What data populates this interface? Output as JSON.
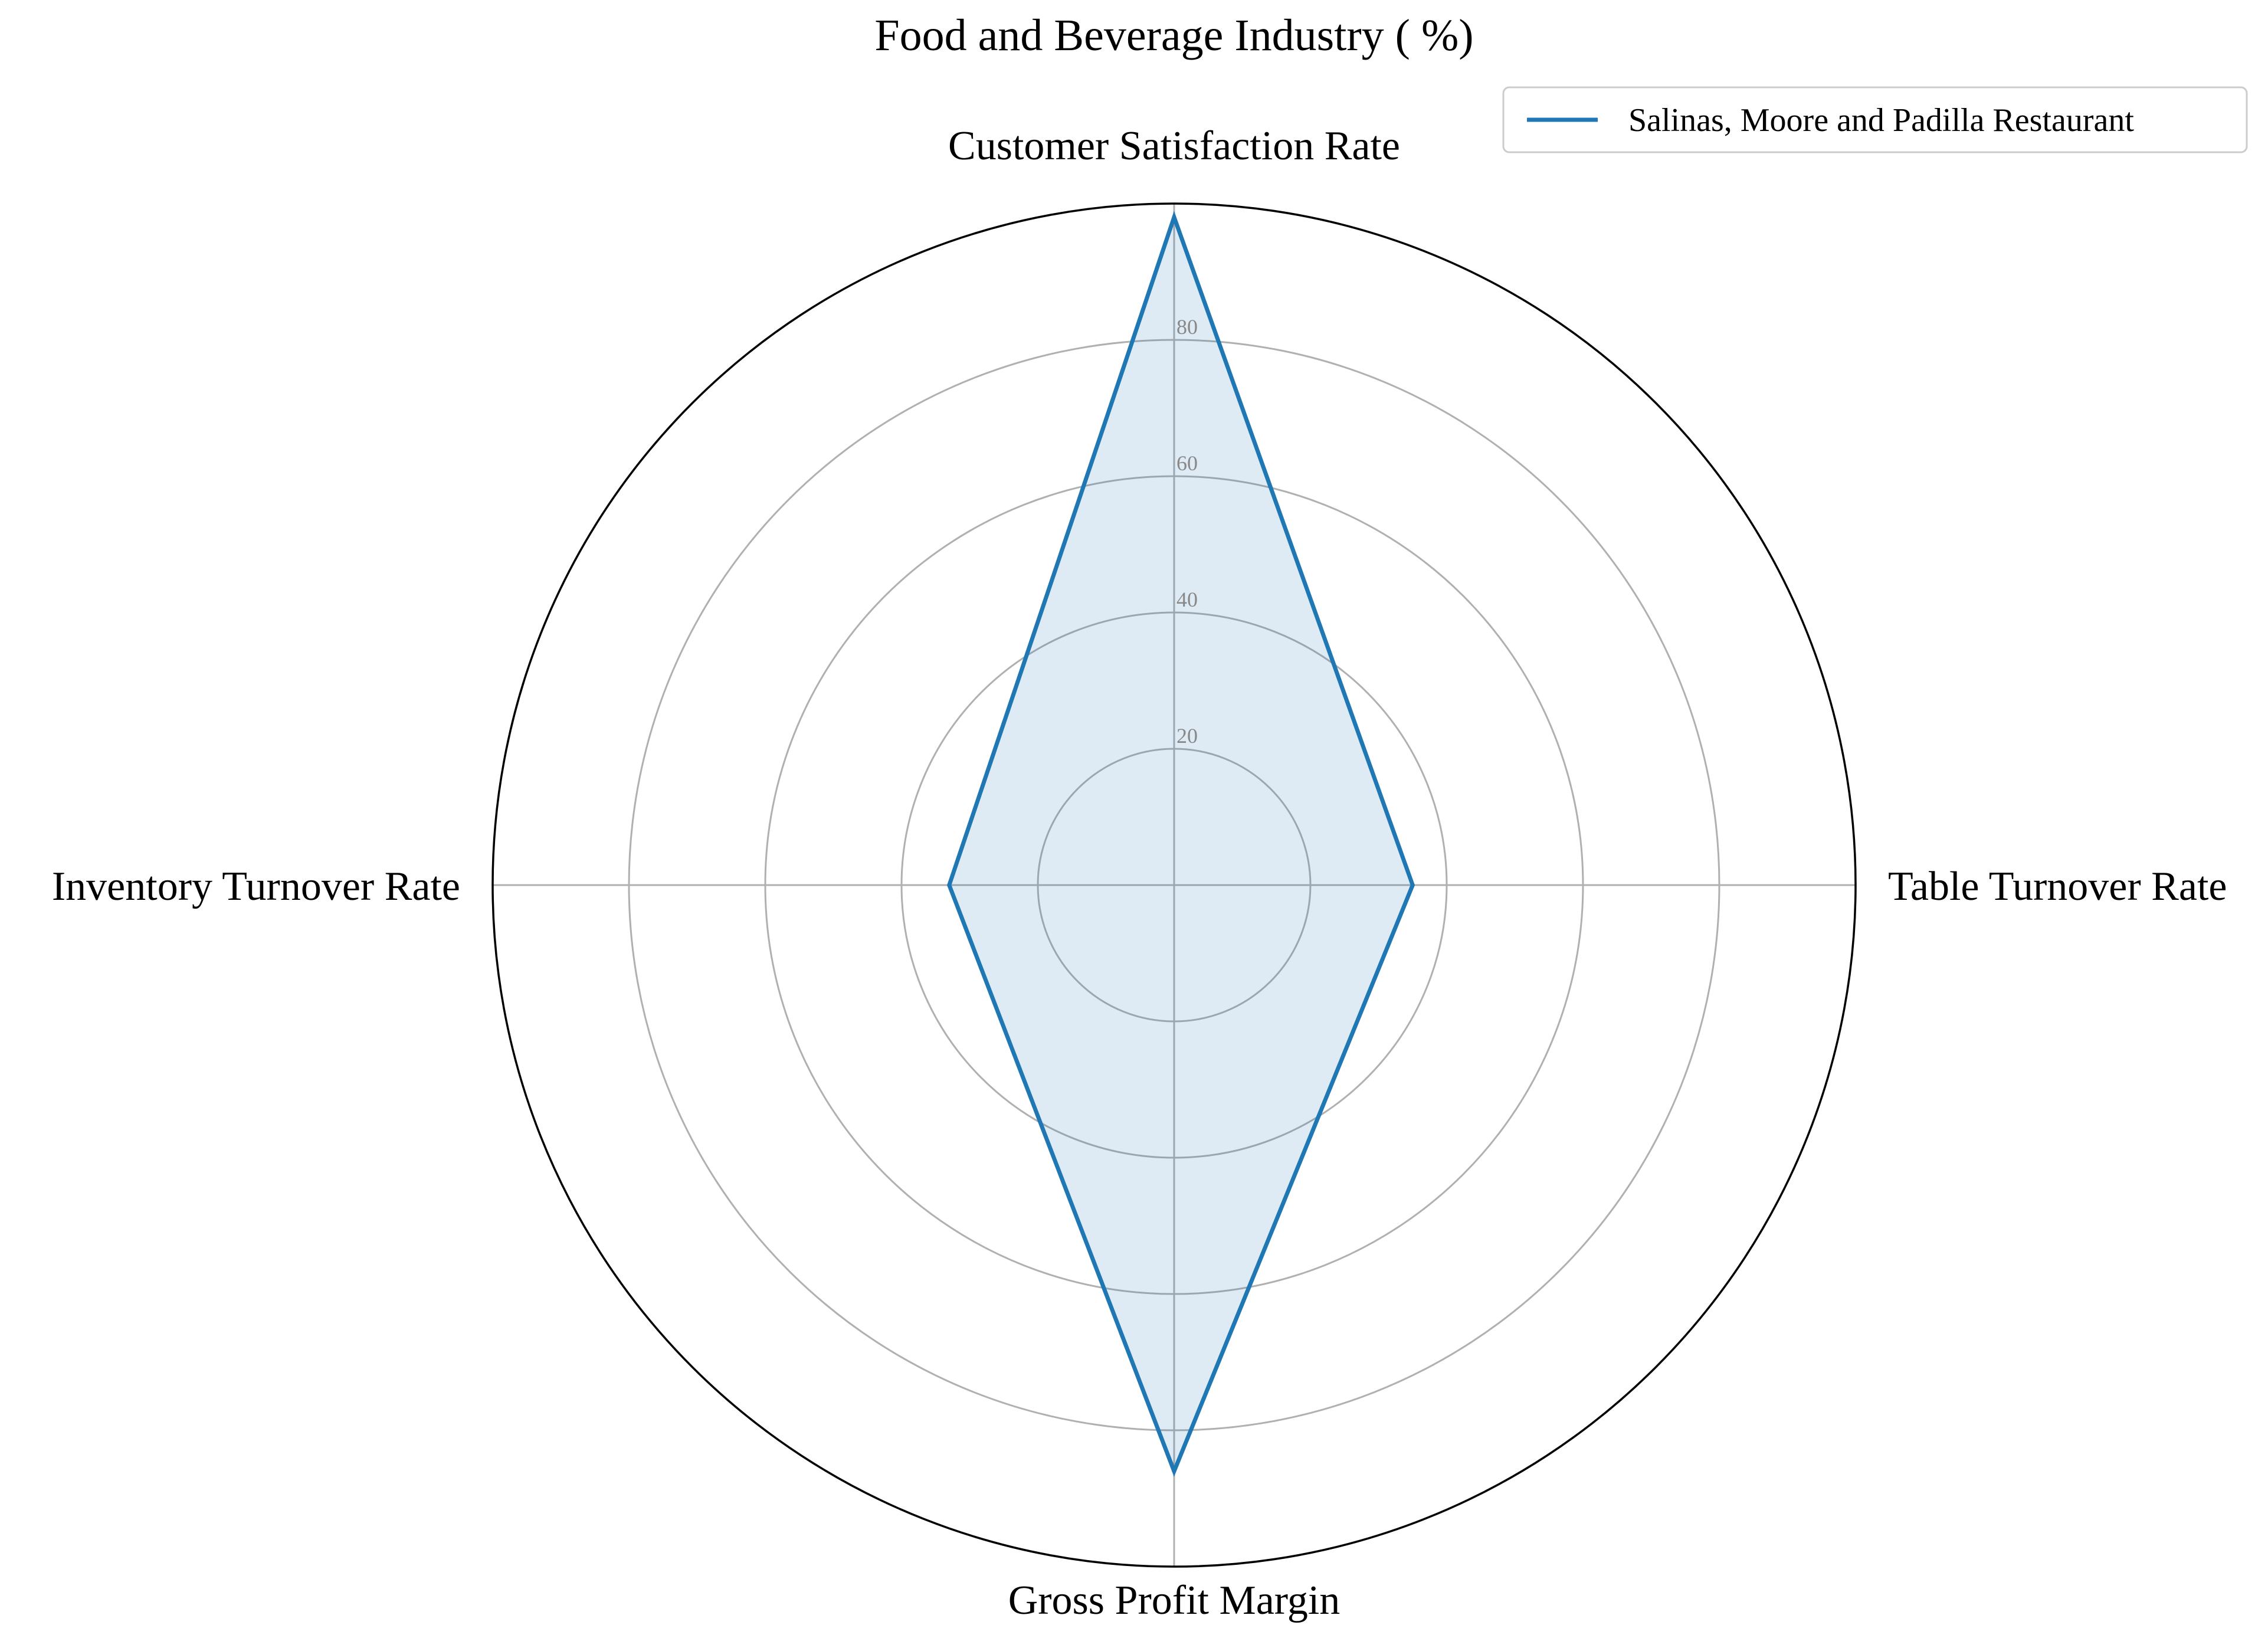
{
  "chart_data": {
    "type": "radar",
    "title": "Food and Beverage Industry ( %)",
    "axes": [
      "Customer Satisfaction Rate",
      "Table Turnover Rate",
      "Gross Profit Margin",
      "Inventory Turnover Rate"
    ],
    "series": [
      {
        "name": "Salinas, Moore and Padilla Restaurant",
        "values": [
          98,
          35,
          86,
          33
        ],
        "color": "#1f77b4"
      }
    ],
    "r_ticks": [
      20,
      40,
      60,
      80
    ],
    "r_tick_labels": [
      "20",
      "40",
      "60",
      "80"
    ],
    "r_max": 100,
    "grid": true,
    "legend": "top-right"
  },
  "colors": {
    "series_line": "#1f77b4",
    "series_fill": "rgba(31,119,180,0.15)",
    "grid": "#b0b0b0",
    "outer_frame": "#000000"
  }
}
